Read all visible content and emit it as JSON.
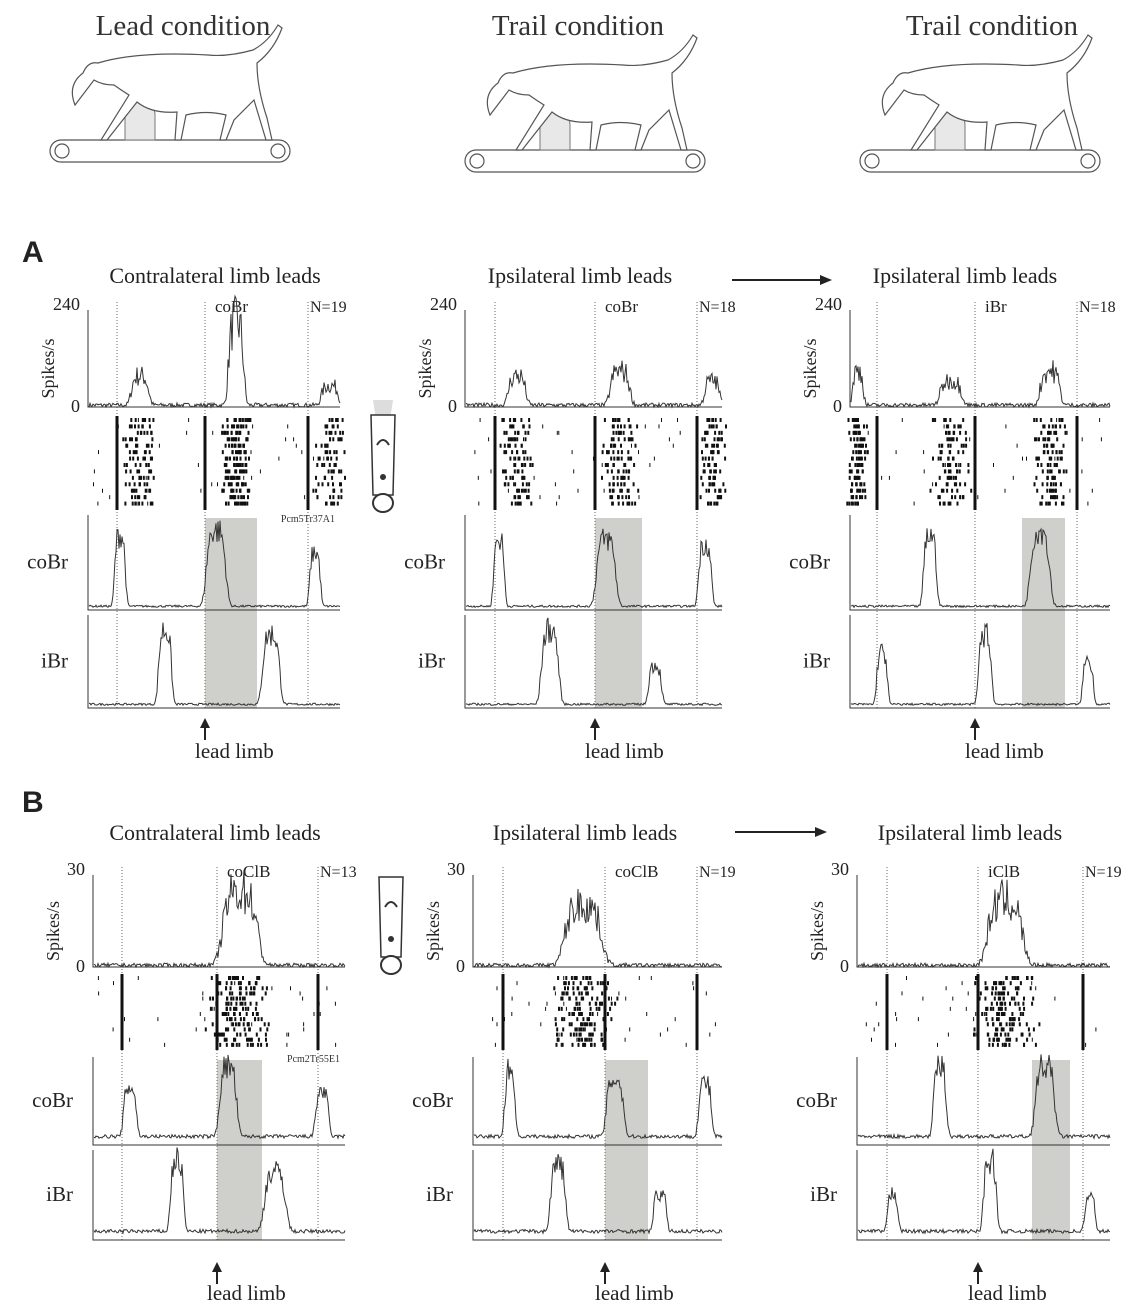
{
  "header": {
    "conditions": [
      "Lead condition",
      "Trail condition",
      "Trail condition"
    ]
  },
  "panels": [
    {
      "label": "A",
      "columns": [
        {
          "title": "Contralateral limb leads",
          "y_axis_label": "Spikes/s",
          "y_ticks": [
            240,
            0
          ],
          "neuron": "coBr",
          "n": "N=19",
          "cell_id": "Pcm5Tr37A1",
          "emg": [
            "coBr",
            "iBr"
          ],
          "marker": "lead limb"
        },
        {
          "title": "Ipsilateral limb leads",
          "y_axis_label": "Spikes/s",
          "y_ticks": [
            240,
            0
          ],
          "neuron": "coBr",
          "n": "N=18",
          "emg": [
            "coBr",
            "iBr"
          ],
          "marker": "lead limb"
        },
        {
          "title": "Ipsilateral limb leads",
          "y_axis_label": "Spikes/s",
          "y_ticks": [
            240,
            0
          ],
          "neuron": "iBr",
          "n": "N=18",
          "emg": [
            "coBr",
            "iBr"
          ],
          "marker": "lead limb"
        }
      ]
    },
    {
      "label": "B",
      "columns": [
        {
          "title": "Contralateral limb leads",
          "y_axis_label": "Spikes/s",
          "y_ticks": [
            30,
            0
          ],
          "neuron": "coClB",
          "n": "N=13",
          "cell_id": "Pcm2Tr55E1",
          "emg": [
            "coBr",
            "iBr"
          ],
          "marker": "lead limb"
        },
        {
          "title": "Ipsilateral limb leads",
          "y_axis_label": "Spikes/s",
          "y_ticks": [
            30,
            0
          ],
          "neuron": "coClB",
          "n": "N=19",
          "emg": [
            "coBr",
            "iBr"
          ],
          "marker": "lead limb"
        },
        {
          "title": "Ipsilateral limb leads",
          "y_axis_label": "Spikes/s",
          "y_ticks": [
            30,
            0
          ],
          "neuron": "iClB",
          "n": "N=19",
          "emg": [
            "coBr",
            "iBr"
          ],
          "marker": "lead limb"
        }
      ]
    }
  ]
}
